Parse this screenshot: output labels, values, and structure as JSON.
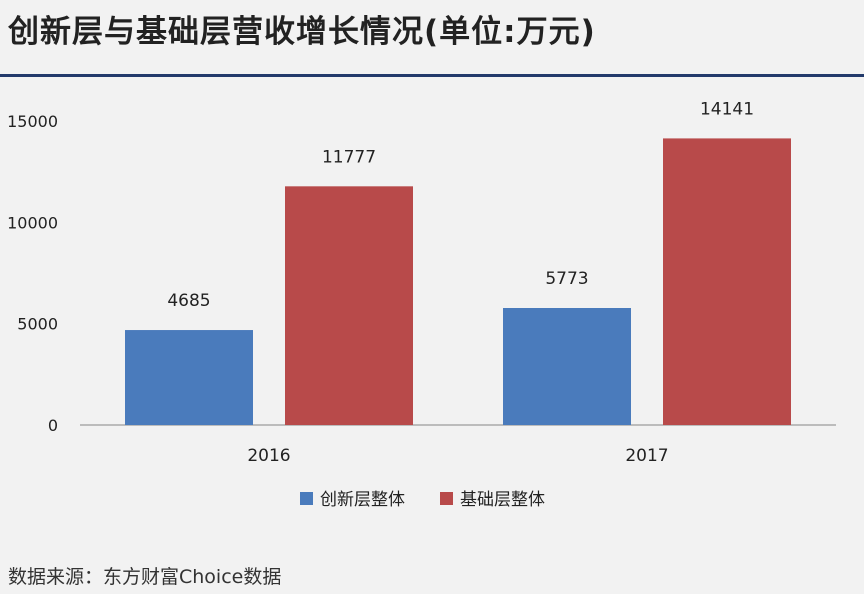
{
  "header": {
    "title": "创新层与基础层营收增长情况(单位:万元)"
  },
  "chart_data": {
    "type": "bar",
    "title": "创新层与基础层营收增长情况(单位:万元)",
    "xlabel": "",
    "ylabel": "",
    "categories": [
      "2016",
      "2017"
    ],
    "ylim": [
      0,
      15000
    ],
    "yticks": [
      "0",
      "5000",
      "10000",
      "15000"
    ],
    "grid": false,
    "legend_position": "bottom-center",
    "series": [
      {
        "name": "创新层整体",
        "color": "#4a7bbc",
        "values": [
          4685,
          5773
        ],
        "labels": [
          "4685",
          "5773"
        ]
      },
      {
        "name": "基础层整体",
        "color": "#b84a4a",
        "values": [
          11777,
          14141
        ],
        "labels": [
          "11777",
          "14141"
        ]
      }
    ]
  },
  "footer": {
    "source": "数据来源：东方财富Choice数据"
  }
}
